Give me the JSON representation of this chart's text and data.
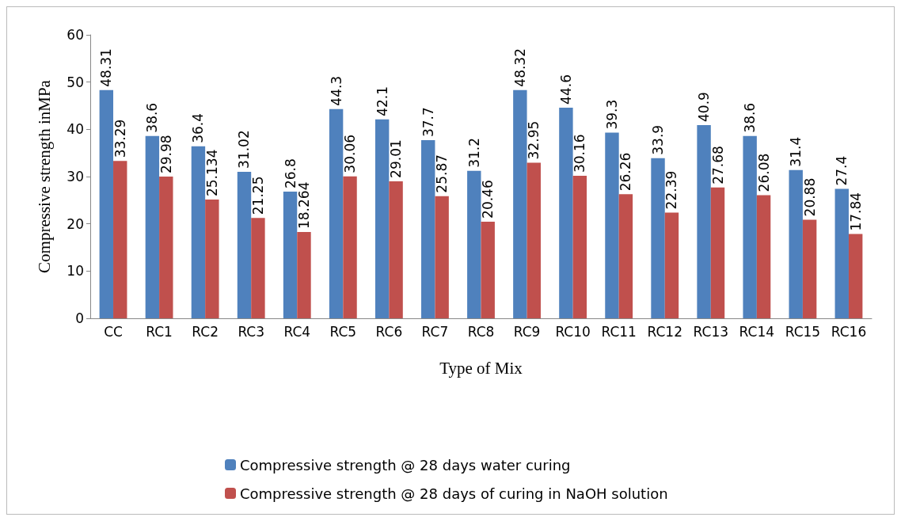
{
  "chart_data": {
    "type": "bar",
    "xlabel": "Type of Mix",
    "ylabel": "Compressive strength inMPa",
    "categories": [
      "CC",
      "RC1",
      "RC2",
      "RC3",
      "RC4",
      "RC5",
      "RC6",
      "RC7",
      "RC8",
      "RC9",
      "RC10",
      "RC11",
      "RC12",
      "RC13",
      "RC14",
      "RC15",
      "RC16"
    ],
    "series": [
      {
        "name": "Compressive strength @ 28 days water curing",
        "color": "#4f81bd",
        "values": [
          48.31,
          38.6,
          36.4,
          31.02,
          26.8,
          44.3,
          42.1,
          37.7,
          31.2,
          48.32,
          44.6,
          39.3,
          33.9,
          40.9,
          38.6,
          31.4,
          27.4
        ]
      },
      {
        "name": "Compressive strength @ 28 days of curing in NaOH solution",
        "color": "#c0504d",
        "values": [
          33.29,
          29.98,
          25.134,
          21.25,
          18.264,
          30.06,
          29.01,
          25.87,
          20.46,
          32.95,
          30.16,
          26.26,
          22.39,
          27.68,
          26.08,
          20.88,
          17.84
        ]
      }
    ],
    "ylim": [
      0,
      60
    ],
    "yticks": [
      0,
      10,
      20,
      30,
      40,
      50,
      60
    ],
    "grid": false,
    "legend": "bottom",
    "data_labels": true
  }
}
